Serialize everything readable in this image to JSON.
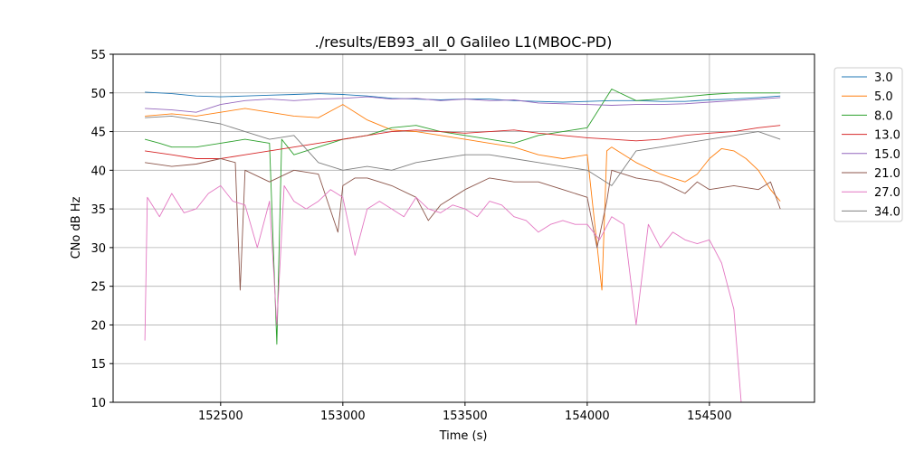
{
  "chart_data": {
    "type": "line",
    "title": "./results/EB93_all_0 Galileo L1(MBOC-PD)",
    "xlabel": "Time (s)",
    "ylabel": "CNo dB Hz",
    "xlim": [
      152060,
      154930
    ],
    "ylim": [
      10,
      55
    ],
    "xticks": [
      152500,
      153000,
      153500,
      154000,
      154500
    ],
    "yticks": [
      10,
      15,
      20,
      25,
      30,
      35,
      40,
      45,
      50,
      55
    ],
    "grid": true,
    "legend_position": "outside-right-top",
    "series": [
      {
        "name": "3.0",
        "color": "#1f77b4",
        "x": [
          152190,
          152300,
          152400,
          152500,
          152600,
          152700,
          152800,
          152900,
          153000,
          153100,
          153200,
          153300,
          153400,
          153500,
          153600,
          153700,
          153800,
          153900,
          154000,
          154100,
          154200,
          154300,
          154400,
          154500,
          154600,
          154700,
          154790
        ],
        "y": [
          50.1,
          49.9,
          49.6,
          49.5,
          49.6,
          49.7,
          49.8,
          49.9,
          49.8,
          49.6,
          49.3,
          49.2,
          49.1,
          49.2,
          49.2,
          49.0,
          48.9,
          48.8,
          48.9,
          49.0,
          49.0,
          48.9,
          48.9,
          49.1,
          49.2,
          49.4,
          49.6
        ]
      },
      {
        "name": "5.0",
        "color": "#ff7f0e",
        "x": [
          152190,
          152300,
          152400,
          152500,
          152600,
          152700,
          152800,
          152900,
          153000,
          153100,
          153200,
          153300,
          153400,
          153500,
          153600,
          153700,
          153800,
          153900,
          154000,
          154060,
          154080,
          154100,
          154200,
          154300,
          154350,
          154400,
          154450,
          154500,
          154550,
          154600,
          154650,
          154700,
          154750,
          154790
        ],
        "y": [
          47.0,
          47.3,
          47.0,
          47.5,
          48.0,
          47.5,
          47.0,
          46.8,
          48.5,
          46.5,
          45.2,
          45.0,
          44.5,
          44.0,
          43.5,
          43.0,
          42.0,
          41.5,
          42.0,
          24.5,
          42.5,
          43.0,
          41.0,
          39.5,
          39.0,
          38.5,
          39.5,
          41.5,
          42.8,
          42.5,
          41.5,
          40.0,
          37.5,
          36.0
        ]
      },
      {
        "name": "8.0",
        "color": "#2ca02c",
        "x": [
          152190,
          152250,
          152300,
          152400,
          152500,
          152600,
          152700,
          152730,
          152750,
          152800,
          152900,
          153000,
          153100,
          153200,
          153300,
          153400,
          153500,
          153600,
          153700,
          153800,
          153900,
          154000,
          154100,
          154200,
          154300,
          154400,
          154500,
          154600,
          154700,
          154790
        ],
        "y": [
          44.0,
          43.5,
          43.0,
          43.0,
          43.5,
          44.0,
          43.5,
          17.5,
          44.0,
          42.0,
          43.0,
          44.0,
          44.5,
          45.5,
          45.8,
          45.0,
          44.5,
          44.0,
          43.5,
          44.5,
          45.0,
          45.5,
          50.5,
          49.0,
          49.2,
          49.5,
          49.8,
          50.0,
          50.0,
          50.0
        ]
      },
      {
        "name": "13.0",
        "color": "#d62728",
        "x": [
          152190,
          152300,
          152400,
          152500,
          152600,
          152700,
          152800,
          152900,
          153000,
          153100,
          153200,
          153300,
          153400,
          153500,
          153600,
          153700,
          153800,
          153900,
          154000,
          154100,
          154200,
          154300,
          154400,
          154500,
          154600,
          154700,
          154790
        ],
        "y": [
          42.5,
          42.0,
          41.5,
          41.5,
          42.0,
          42.5,
          43.0,
          43.5,
          44.0,
          44.5,
          45.0,
          45.2,
          45.0,
          44.8,
          45.0,
          45.2,
          44.8,
          44.5,
          44.2,
          44.0,
          43.8,
          44.0,
          44.5,
          44.8,
          45.0,
          45.5,
          45.8
        ]
      },
      {
        "name": "15.0",
        "color": "#9467bd",
        "x": [
          152190,
          152300,
          152400,
          152500,
          152600,
          152700,
          152800,
          152900,
          153000,
          153100,
          153200,
          153300,
          153400,
          153500,
          153600,
          153700,
          153800,
          153900,
          154000,
          154100,
          154200,
          154300,
          154400,
          154500,
          154600,
          154700,
          154790
        ],
        "y": [
          48.0,
          47.8,
          47.5,
          48.5,
          49.0,
          49.2,
          49.0,
          49.2,
          49.3,
          49.5,
          49.2,
          49.3,
          49.0,
          49.2,
          49.0,
          49.1,
          48.7,
          48.6,
          48.5,
          48.4,
          48.5,
          48.5,
          48.6,
          48.8,
          49.0,
          49.2,
          49.4
        ]
      },
      {
        "name": "21.0",
        "color": "#8c564b",
        "x": [
          152190,
          152300,
          152400,
          152500,
          152560,
          152580,
          152600,
          152700,
          152800,
          152900,
          152980,
          153000,
          153050,
          153100,
          153200,
          153300,
          153350,
          153400,
          153500,
          153600,
          153700,
          153800,
          153900,
          154000,
          154040,
          154080,
          154100,
          154200,
          154300,
          154400,
          154450,
          154500,
          154600,
          154700,
          154750,
          154790
        ],
        "y": [
          41.0,
          40.5,
          40.8,
          41.5,
          41.0,
          24.5,
          40.0,
          38.5,
          40.0,
          39.5,
          32.0,
          38.0,
          39.0,
          39.0,
          38.0,
          36.5,
          33.5,
          35.5,
          37.5,
          39.0,
          38.5,
          38.5,
          37.5,
          36.5,
          30.0,
          36.0,
          40.0,
          39.0,
          38.5,
          37.0,
          38.5,
          37.5,
          38.0,
          37.5,
          38.5,
          35.0
        ]
      },
      {
        "name": "27.0",
        "color": "#e377c2",
        "x": [
          152190,
          152200,
          152250,
          152300,
          152350,
          152400,
          152450,
          152500,
          152550,
          152600,
          152650,
          152700,
          152730,
          152760,
          152800,
          152850,
          152900,
          152950,
          153000,
          153050,
          153100,
          153150,
          153200,
          153250,
          153300,
          153350,
          153400,
          153450,
          153500,
          153550,
          153600,
          153650,
          153700,
          153750,
          153800,
          153850,
          153900,
          153950,
          154000,
          154050,
          154100,
          154150,
          154200,
          154250,
          154300,
          154350,
          154400,
          154450,
          154500,
          154550,
          154600,
          154630
        ],
        "y": [
          18.0,
          36.5,
          34.0,
          37.0,
          34.5,
          35.0,
          37.0,
          38.0,
          36.0,
          35.5,
          30.0,
          36.0,
          20.0,
          38.0,
          36.0,
          35.0,
          36.0,
          37.5,
          36.5,
          29.0,
          35.0,
          36.0,
          35.0,
          34.0,
          36.5,
          35.0,
          34.5,
          35.5,
          35.0,
          34.0,
          36.0,
          35.5,
          34.0,
          33.5,
          32.0,
          33.0,
          33.5,
          33.0,
          33.0,
          31.0,
          34.0,
          33.0,
          20.0,
          33.0,
          30.0,
          32.0,
          31.0,
          30.5,
          31.0,
          28.0,
          22.0,
          10.0
        ]
      },
      {
        "name": "34.0",
        "color": "#7f7f7f",
        "x": [
          152190,
          152300,
          152400,
          152500,
          152600,
          152700,
          152800,
          152900,
          153000,
          153100,
          153200,
          153300,
          153400,
          153500,
          153600,
          153700,
          153800,
          153900,
          154000,
          154100,
          154200,
          154300,
          154400,
          154500,
          154600,
          154700,
          154790
        ],
        "y": [
          46.8,
          47.0,
          46.5,
          46.0,
          45.0,
          44.0,
          44.5,
          41.0,
          40.0,
          40.5,
          40.0,
          41.0,
          41.5,
          42.0,
          42.0,
          41.5,
          41.0,
          40.5,
          40.0,
          38.0,
          42.5,
          43.0,
          43.5,
          44.0,
          44.5,
          45.0,
          44.0
        ]
      }
    ]
  }
}
